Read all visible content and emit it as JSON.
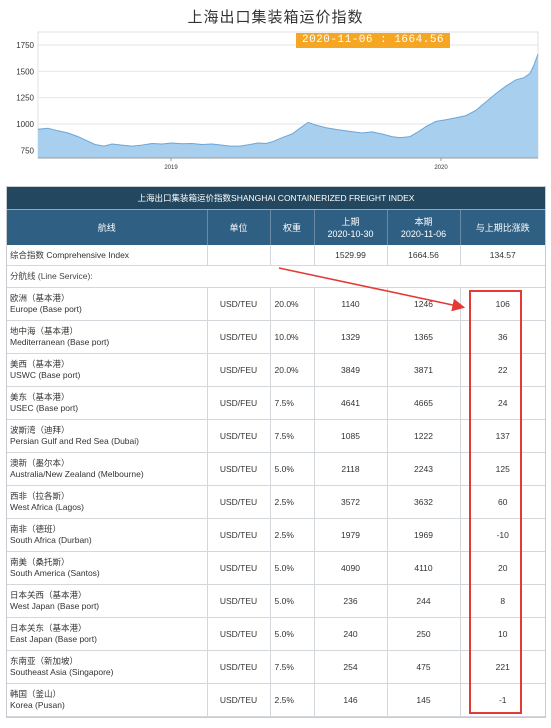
{
  "chart": {
    "title": "上海出口集装箱运价指数",
    "tooltip": "2020-11-06 : 1664.56",
    "y_ticks": [
      "1750",
      "1500",
      "1250",
      "1000",
      "750"
    ],
    "x_ticks": [
      "2019",
      "2020"
    ],
    "fill_color": "#a9cfee",
    "line_color": "#6aa6d8"
  },
  "table": {
    "caption": "上海出口集装箱运价指数SHANGHAI CONTAINERIZED FREIGHT INDEX",
    "headers": {
      "route": "航线",
      "unit": "单位",
      "weight": "权重",
      "prev_label": "上期",
      "prev_date": "2020-10-30",
      "curr_label": "本期",
      "curr_date": "2020-11-06",
      "change": "与上期比涨跌"
    },
    "comprehensive": {
      "name": "综合指数 Comprehensive Index",
      "unit": "",
      "weight": "",
      "prev": "1529.99",
      "curr": "1664.56",
      "change": "134.57"
    },
    "section_label": "分航线 (Line Service):",
    "routes": [
      {
        "cn": "欧洲（基本港）",
        "en": "Europe (Base port)",
        "unit": "USD/TEU",
        "weight": "20.0%",
        "prev": "1140",
        "curr": "1246",
        "change": "106"
      },
      {
        "cn": "地中海（基本港）",
        "en": "Mediterranean (Base port)",
        "unit": "USD/TEU",
        "weight": "10.0%",
        "prev": "1329",
        "curr": "1365",
        "change": "36"
      },
      {
        "cn": "美西（基本港）",
        "en": "USWC (Base port)",
        "unit": "USD/FEU",
        "weight": "20.0%",
        "prev": "3849",
        "curr": "3871",
        "change": "22"
      },
      {
        "cn": "美东（基本港）",
        "en": "USEC (Base port)",
        "unit": "USD/FEU",
        "weight": "7.5%",
        "prev": "4641",
        "curr": "4665",
        "change": "24"
      },
      {
        "cn": "波斯湾（迪拜）",
        "en": "Persian Gulf and Red Sea (Dubai)",
        "unit": "USD/TEU",
        "weight": "7.5%",
        "prev": "1085",
        "curr": "1222",
        "change": "137"
      },
      {
        "cn": "澳新（墨尔本）",
        "en": "Australia/New Zealand (Melbourne)",
        "unit": "USD/TEU",
        "weight": "5.0%",
        "prev": "2118",
        "curr": "2243",
        "change": "125"
      },
      {
        "cn": "西非（拉各斯）",
        "en": "West Africa (Lagos)",
        "unit": "USD/TEU",
        "weight": "2.5%",
        "prev": "3572",
        "curr": "3632",
        "change": "60"
      },
      {
        "cn": "南非（德班）",
        "en": "South Africa (Durban)",
        "unit": "USD/TEU",
        "weight": "2.5%",
        "prev": "1979",
        "curr": "1969",
        "change": "-10"
      },
      {
        "cn": "南美（桑托斯）",
        "en": "South America (Santos)",
        "unit": "USD/TEU",
        "weight": "5.0%",
        "prev": "4090",
        "curr": "4110",
        "change": "20"
      },
      {
        "cn": "日本关西（基本港）",
        "en": "West Japan (Base port)",
        "unit": "USD/TEU",
        "weight": "5.0%",
        "prev": "236",
        "curr": "244",
        "change": "8"
      },
      {
        "cn": "日本关东（基本港）",
        "en": "East Japan (Base port)",
        "unit": "USD/TEU",
        "weight": "5.0%",
        "prev": "240",
        "curr": "250",
        "change": "10"
      },
      {
        "cn": "东南亚（新加坡）",
        "en": "Southeast Asia (Singapore)",
        "unit": "USD/TEU",
        "weight": "7.5%",
        "prev": "254",
        "curr": "475",
        "change": "221"
      },
      {
        "cn": "韩国（釜山）",
        "en": "Korea (Pusan)",
        "unit": "USD/TEU",
        "weight": "2.5%",
        "prev": "146",
        "curr": "145",
        "change": "-1"
      }
    ]
  },
  "annotation": {
    "color": "#e53935"
  }
}
